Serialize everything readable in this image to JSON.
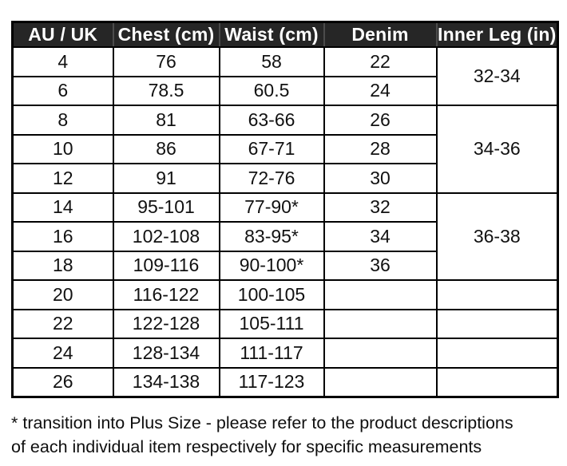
{
  "colors": {
    "header_bg": "#262626",
    "header_text": "#ffffff",
    "header_divider": "#4c4c4c",
    "grid_border": "#000000",
    "cell_text": "#111111",
    "page_bg": "#ffffff"
  },
  "chart_data": {
    "type": "table",
    "columns": [
      "AU / UK",
      "Chest (cm)",
      "Waist (cm)",
      "Denim",
      "Inner Leg (in)"
    ],
    "rows": [
      [
        "4",
        "76",
        "58",
        "22"
      ],
      [
        "6",
        "78.5",
        "60.5",
        "24"
      ],
      [
        "8",
        "81",
        "63-66",
        "26"
      ],
      [
        "10",
        "86",
        "67-71",
        "28"
      ],
      [
        "12",
        "91",
        "72-76",
        "30"
      ],
      [
        "14",
        "95-101",
        "77-90*",
        "32"
      ],
      [
        "16",
        "102-108",
        "83-95*",
        "34"
      ],
      [
        "18",
        "109-116",
        "90-100*",
        "36"
      ],
      [
        "20",
        "116-122",
        "100-105",
        ""
      ],
      [
        "22",
        "122-128",
        "105-111",
        ""
      ],
      [
        "24",
        "128-134",
        "111-117",
        ""
      ],
      [
        "26",
        "134-138",
        "117-123",
        ""
      ]
    ],
    "inner_leg": [
      {
        "label": "32-34",
        "rowspan": 2
      },
      {
        "label": "34-36",
        "rowspan": 3
      },
      {
        "label": "36-38",
        "rowspan": 3
      },
      {
        "label": "",
        "rowspan": 1
      },
      {
        "label": "",
        "rowspan": 1
      },
      {
        "label": "",
        "rowspan": 1
      },
      {
        "label": "",
        "rowspan": 1
      }
    ]
  },
  "footnote": {
    "lines": [
      "* transition into Plus Size - please refer to the product descriptions",
      "of each individual item respectively for specific measurements"
    ]
  }
}
